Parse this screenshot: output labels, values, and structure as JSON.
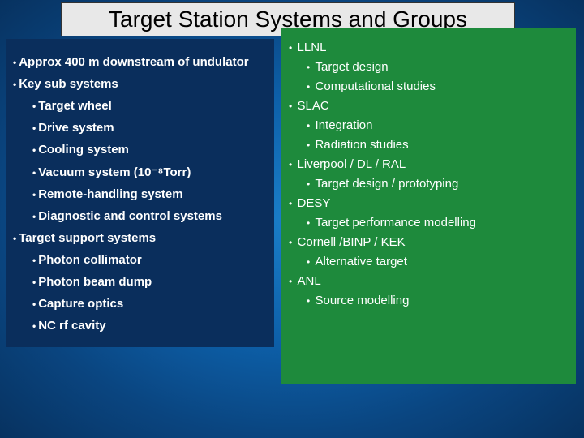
{
  "title": "Target Station Systems and Groups",
  "left": {
    "background_color": "#0a2e5c",
    "text_color": "#ffffff",
    "items": [
      {
        "level": 1,
        "text": "Approx 400 m downstream of undulator"
      },
      {
        "level": 1,
        "text": "Key sub systems"
      },
      {
        "level": 2,
        "text": "Target wheel"
      },
      {
        "level": 2,
        "text": "Drive system"
      },
      {
        "level": 2,
        "text": "Cooling system"
      },
      {
        "level": 2,
        "text": "Vacuum system (10⁻⁸Torr)"
      },
      {
        "level": 2,
        "text": "Remote-handling system"
      },
      {
        "level": 2,
        "text": "Diagnostic and control systems"
      },
      {
        "level": 1,
        "text": "Target support systems"
      },
      {
        "level": 2,
        "text": "Photon collimator"
      },
      {
        "level": 2,
        "text": "Photon beam dump"
      },
      {
        "level": 2,
        "text": "Capture optics"
      },
      {
        "level": 2,
        "text": "NC rf cavity"
      }
    ]
  },
  "right": {
    "background_color": "#1e8a3c",
    "text_color": "#ffffff",
    "items": [
      {
        "level": 1,
        "text": "LLNL"
      },
      {
        "level": 2,
        "text": "Target design"
      },
      {
        "level": 2,
        "text": "Computational studies"
      },
      {
        "level": 1,
        "text": "SLAC"
      },
      {
        "level": 2,
        "text": "Integration"
      },
      {
        "level": 2,
        "text": "Radiation studies"
      },
      {
        "level": 1,
        "text": "Liverpool / DL / RAL"
      },
      {
        "level": 2,
        "text": "Target design / prototyping"
      },
      {
        "level": 1,
        "text": "DESY"
      },
      {
        "level": 2,
        "text": "Target performance modelling"
      },
      {
        "level": 1,
        "text": "Cornell /BINP / KEK"
      },
      {
        "level": 2,
        "text": "Alternative target"
      },
      {
        "level": 1,
        "text": "ANL"
      },
      {
        "level": 2,
        "text": "Source modelling"
      }
    ]
  },
  "style": {
    "title_bg": "#e8e8e8",
    "title_fontsize": 28,
    "body_fontsize": 15,
    "slide_bg_gradient": [
      "#1a7ec9",
      "#0d5fa8",
      "#0a4580",
      "#073260"
    ]
  }
}
